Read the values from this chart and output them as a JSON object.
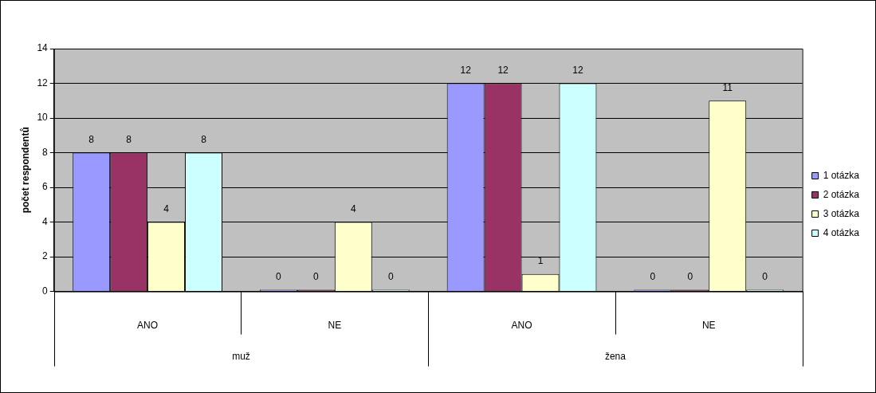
{
  "chart_data": {
    "type": "bar",
    "ylabel": "počet respondentů",
    "categories": [
      "ANO",
      "NE",
      "ANO",
      "NE"
    ],
    "series": [
      {
        "name": "1 otázka",
        "color": "#9999ff",
        "values": [
          8,
          0,
          12,
          0
        ]
      },
      {
        "name": "2 otázka",
        "color": "#993366",
        "values": [
          8,
          0,
          12,
          0
        ]
      },
      {
        "name": "3 otázka",
        "color": "#ffffcc",
        "values": [
          4,
          4,
          1,
          11
        ]
      },
      {
        "name": "4 otázka",
        "color": "#ccffff",
        "values": [
          8,
          0,
          12,
          0
        ]
      }
    ],
    "ylim": [
      0,
      14
    ],
    "yticks": [
      0,
      2,
      4,
      6,
      8,
      10,
      12,
      14
    ],
    "grid": "y",
    "legend": "right",
    "data_labels": true,
    "annotations": [
      "muž",
      "žena"
    ]
  }
}
